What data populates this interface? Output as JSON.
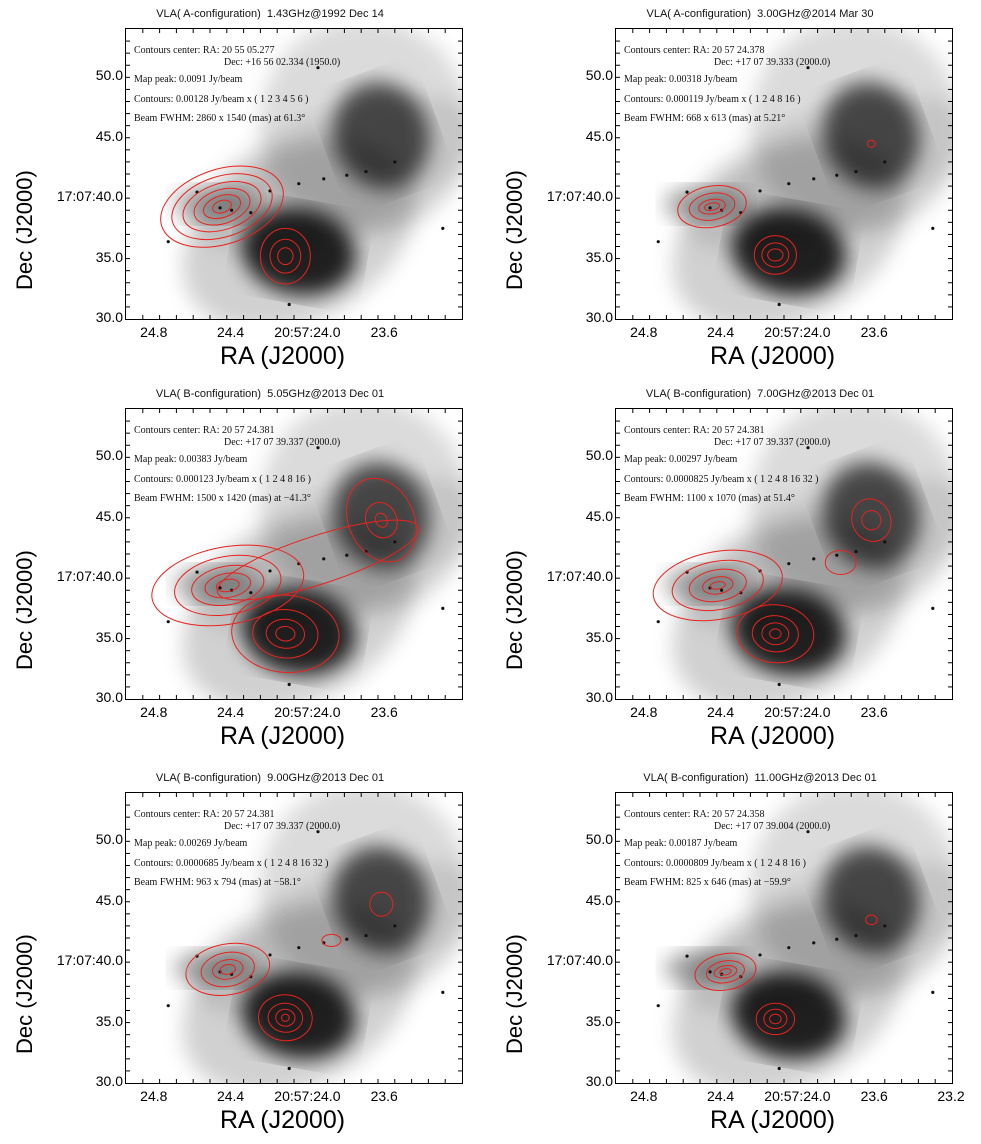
{
  "chart_data": [
    {
      "type": "contour",
      "title": "VLA( A-configuration)  1.43GHz@1992 Dec 14",
      "xlabel": "RA (J2000)",
      "ylabel": "Dec (J2000)",
      "xticks": [
        "24.8",
        "24.4",
        "20:57:24.0",
        "23.6"
      ],
      "yticks": [
        "50.0",
        "45.0",
        "17:07:40.0",
        "35.0",
        "30.0"
      ],
      "info": {
        "center_ra": "Contours center: RA: 20 55 05.277",
        "center_dec": "Dec: +16 56 02.334 (1950.0)",
        "peak": "Map peak: 0.0091 Jy/beam",
        "levels": "Contours: 0.00128 Jy/beam x ( 1 2 3 4 5 6 )",
        "beam": "Beam FWHM: 2860 x 1540 (mas) at 61.3°"
      },
      "peak_jy_per_beam": 0.0091,
      "base_contour_jy_per_beam": 0.00128,
      "contour_multipliers": [
        1,
        2,
        3,
        4,
        5,
        6
      ]
    },
    {
      "type": "contour",
      "title": "VLA( A-configuration)  3.00GHz@2014 Mar 30",
      "xlabel": "RA (J2000)",
      "ylabel": "Dec (J2000)",
      "xticks": [
        "24.8",
        "24.4",
        "20:57:24.0",
        "23.6"
      ],
      "yticks": [
        "50.0",
        "45.0",
        "17:07:40.0",
        "35.0",
        "30.0"
      ],
      "info": {
        "center_ra": "Contours center: RA: 20 57 24.378",
        "center_dec": "Dec: +17 07 39.333 (2000.0)",
        "peak": "Map peak: 0.00318 Jy/beam",
        "levels": "Contours: 0.000119 Jy/beam x ( 1 2 4 8 16 )",
        "beam": "Beam FWHM: 668 x 613 (mas) at 5.21°"
      },
      "peak_jy_per_beam": 0.00318,
      "base_contour_jy_per_beam": 0.000119,
      "contour_multipliers": [
        1,
        2,
        4,
        8,
        16
      ]
    },
    {
      "type": "contour",
      "title": "VLA( B-configuration)  5.05GHz@2013 Dec 01",
      "xlabel": "RA (J2000)",
      "ylabel": "Dec (J2000)",
      "xticks": [
        "24.8",
        "24.4",
        "20:57:24.0",
        "23.6"
      ],
      "yticks": [
        "50.0",
        "45.0",
        "17:07:40.0",
        "35.0",
        "30.0"
      ],
      "info": {
        "center_ra": "Contours center: RA: 20 57 24.381",
        "center_dec": "Dec: +17 07 39.337 (2000.0)",
        "peak": "Map peak: 0.00383 Jy/beam",
        "levels": "Contours: 0.000123 Jy/beam x ( 1 2 4 8 16 )",
        "beam": "Beam FWHM: 1500 x 1420 (mas) at −41.3°"
      },
      "peak_jy_per_beam": 0.00383,
      "base_contour_jy_per_beam": 0.000123,
      "contour_multipliers": [
        1,
        2,
        4,
        8,
        16
      ]
    },
    {
      "type": "contour",
      "title": "VLA( B-configuration)  7.00GHz@2013 Dec 01",
      "xlabel": "RA (J2000)",
      "ylabel": "Dec (J2000)",
      "xticks": [
        "24.8",
        "24.4",
        "20:57:24.0",
        "23.6"
      ],
      "yticks": [
        "50.0",
        "45.0",
        "17:07:40.0",
        "35.0",
        "30.0"
      ],
      "info": {
        "center_ra": "Contours center: RA: 20 57 24.381",
        "center_dec": "Dec: +17 07 39.337 (2000.0)",
        "peak": "Map peak: 0.00297 Jy/beam",
        "levels": "Contours: 0.0000825 Jy/beam x ( 1 2 4 8 16 32 )",
        "beam": "Beam FWHM: 1100 x 1070 (mas) at 51.4°"
      },
      "peak_jy_per_beam": 0.00297,
      "base_contour_jy_per_beam": 8.25e-05,
      "contour_multipliers": [
        1,
        2,
        4,
        8,
        16,
        32
      ]
    },
    {
      "type": "contour",
      "title": "VLA( B-configuration)  9.00GHz@2013 Dec 01",
      "xlabel": "RA (J2000)",
      "ylabel": "Dec (J2000)",
      "xticks": [
        "24.8",
        "24.4",
        "20:57:24.0",
        "23.6"
      ],
      "yticks": [
        "50.0",
        "45.0",
        "17:07:40.0",
        "35.0",
        "30.0"
      ],
      "info": {
        "center_ra": "Contours center: RA: 20 57 24.381",
        "center_dec": "Dec: +17 07 39.337 (2000.0)",
        "peak": "Map peak: 0.00269 Jy/beam",
        "levels": "Contours: 0.0000685 Jy/beam x ( 1 2 4 8 16 32 )",
        "beam": "Beam FWHM: 963 x 794 (mas) at −58.1°"
      },
      "peak_jy_per_beam": 0.00269,
      "base_contour_jy_per_beam": 6.85e-05,
      "contour_multipliers": [
        1,
        2,
        4,
        8,
        16,
        32
      ]
    },
    {
      "type": "contour",
      "title": "VLA( B-configuration)  11.00GHz@2013 Dec 01",
      "xlabel": "RA (J2000)",
      "ylabel": "Dec (J2000)",
      "xticks": [
        "24.8",
        "24.4",
        "20:57:24.0",
        "23.6",
        "23.2"
      ],
      "yticks": [
        "50.0",
        "45.0",
        "17:07:40.0",
        "35.0",
        "30.0"
      ],
      "info": {
        "center_ra": "Contours center: RA: 20 57 24.358",
        "center_dec": "Dec: +17 07 39.004 (2000.0)",
        "peak": "Map peak: 0.00187 Jy/beam",
        "levels": "Contours: 0.0000809 Jy/beam x ( 1 2 4 8 16 )",
        "beam": "Beam FWHM: 825 x 646 (mas) at −59.9°"
      },
      "peak_jy_per_beam": 0.00187,
      "base_contour_jy_per_beam": 8.09e-05,
      "contour_multipliers": [
        1,
        2,
        4,
        8,
        16
      ]
    }
  ]
}
